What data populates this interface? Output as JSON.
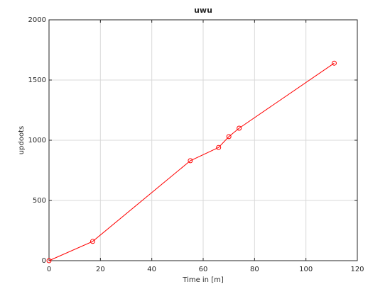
{
  "chart_data": {
    "type": "line",
    "title": "uwu",
    "x_label": "Time in [m]",
    "y_label": "updoots",
    "x": [
      0,
      17,
      55,
      66,
      70,
      74,
      111
    ],
    "series": [
      {
        "color": "#ff0000",
        "values": [
          0,
          160,
          830,
          940,
          1030,
          1100,
          1640
        ]
      }
    ],
    "xlim": [
      0,
      120
    ],
    "xticks": [
      0,
      20,
      40,
      60,
      80,
      100,
      120
    ],
    "ylim": [
      0,
      2000
    ],
    "yticks": [
      0,
      500,
      1000,
      1500,
      2000
    ],
    "grid": true,
    "marker": "circle"
  }
}
